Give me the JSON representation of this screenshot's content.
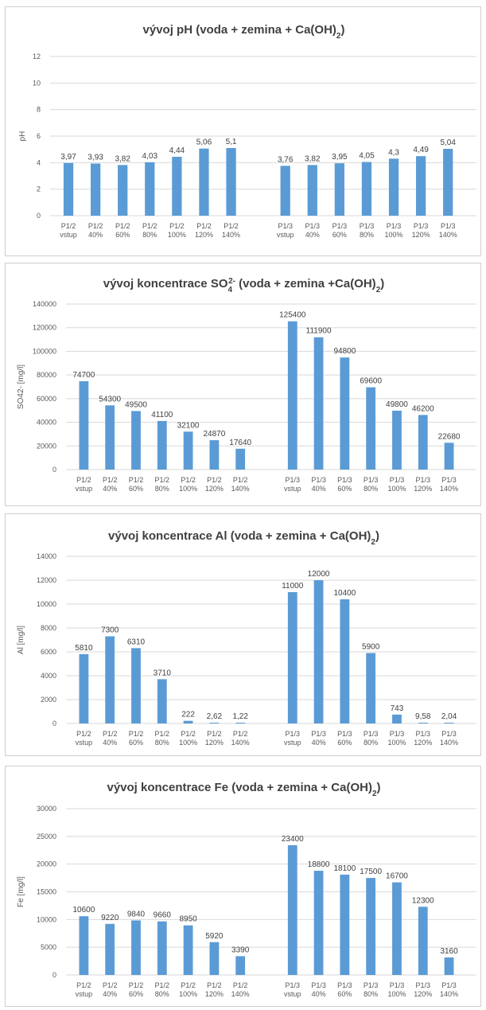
{
  "chart_data": [
    {
      "type": "bar",
      "title_main": "vývoj pH (voda + zemina + Ca(OH)",
      "title_sub": "2",
      "title_end": ")",
      "ylabel": "pH",
      "ylabel_sup": "",
      "ylabel_rest": "",
      "ylim": [
        0,
        12
      ],
      "yticks": [
        "0",
        "2",
        "4",
        "6",
        "8",
        "10",
        "12"
      ],
      "color": "#5b9bd5",
      "groups": [
        {
          "categories": [
            [
              "P1/2",
              "vstup"
            ],
            [
              "P1/2",
              "40%"
            ],
            [
              "P1/2",
              "60%"
            ],
            [
              "P1/2",
              "80%"
            ],
            [
              "P1/2",
              "100%"
            ],
            [
              "P1/2",
              "120%"
            ],
            [
              "P1/2",
              "140%"
            ]
          ],
          "values": [
            3.97,
            3.93,
            3.82,
            4.03,
            4.44,
            5.06,
            5.1
          ],
          "labels": [
            "3,97",
            "3,93",
            "3,82",
            "4,03",
            "4,44",
            "5,06",
            "5,1"
          ]
        },
        {
          "categories": [
            [
              "P1/3",
              "vstup"
            ],
            [
              "P1/3",
              "40%"
            ],
            [
              "P1/3",
              "60%"
            ],
            [
              "P1/3",
              "80%"
            ],
            [
              "P1/3",
              "100%"
            ],
            [
              "P1/3",
              "120%"
            ],
            [
              "P1/3",
              "140%"
            ]
          ],
          "values": [
            3.76,
            3.82,
            3.95,
            4.05,
            4.3,
            4.49,
            5.04
          ],
          "labels": [
            "3,76",
            "3,82",
            "3,95",
            "4,05",
            "4,3",
            "4,49",
            "5,04"
          ]
        }
      ]
    },
    {
      "type": "bar",
      "title_main": "vývoj koncentrace SO",
      "title_sub": "4",
      "title_sup": "2-",
      "title_end": " (voda + zemina +Ca(OH)",
      "title_sub2": "2",
      "title_end2": ")",
      "ylabel": "SO42- [mg/l]",
      "ylim": [
        0,
        140000
      ],
      "yticks": [
        "0",
        "20000",
        "40000",
        "60000",
        "80000",
        "100000",
        "120000",
        "140000"
      ],
      "color": "#5b9bd5",
      "groups": [
        {
          "categories": [
            [
              "P1/2",
              "vstup"
            ],
            [
              "P1/2",
              "40%"
            ],
            [
              "P1/2",
              "60%"
            ],
            [
              "P1/2",
              "80%"
            ],
            [
              "P1/2",
              "100%"
            ],
            [
              "P1/2",
              "120%"
            ],
            [
              "P1/2",
              "140%"
            ]
          ],
          "values": [
            74700,
            54300,
            49500,
            41100,
            32100,
            24870,
            17640
          ],
          "labels": [
            "74700",
            "54300",
            "49500",
            "41100",
            "32100",
            "24870",
            "17640"
          ]
        },
        {
          "categories": [
            [
              "P1/3",
              "vstup"
            ],
            [
              "P1/3",
              "40%"
            ],
            [
              "P1/3",
              "60%"
            ],
            [
              "P1/3",
              "80%"
            ],
            [
              "P1/3",
              "100%"
            ],
            [
              "P1/3",
              "120%"
            ],
            [
              "P1/3",
              "140%"
            ]
          ],
          "values": [
            125400,
            111900,
            94800,
            69600,
            49800,
            46200,
            22680
          ],
          "labels": [
            "125400",
            "111900",
            "94800",
            "69600",
            "49800",
            "46200",
            "22680"
          ]
        }
      ]
    },
    {
      "type": "bar",
      "title_main": "vývoj koncentrace Al (voda + zemina + Ca(OH)",
      "title_sub": "2",
      "title_end": ")",
      "ylabel": "Al [mg/l]",
      "ylim": [
        0,
        14000
      ],
      "yticks": [
        "0",
        "2000",
        "4000",
        "6000",
        "8000",
        "10000",
        "12000",
        "14000"
      ],
      "color": "#5b9bd5",
      "groups": [
        {
          "categories": [
            [
              "P1/2",
              "vstup"
            ],
            [
              "P1/2",
              "40%"
            ],
            [
              "P1/2",
              "60%"
            ],
            [
              "P1/2",
              "80%"
            ],
            [
              "P1/2",
              "100%"
            ],
            [
              "P1/2",
              "120%"
            ],
            [
              "P1/2",
              "140%"
            ]
          ],
          "values": [
            5810,
            7300,
            6310,
            3710,
            222,
            2.62,
            1.22
          ],
          "labels": [
            "5810",
            "7300",
            "6310",
            "3710",
            "222",
            "2,62",
            "1,22"
          ]
        },
        {
          "categories": [
            [
              "P1/3",
              "vstup"
            ],
            [
              "P1/3",
              "40%"
            ],
            [
              "P1/3",
              "60%"
            ],
            [
              "P1/3",
              "80%"
            ],
            [
              "P1/3",
              "100%"
            ],
            [
              "P1/3",
              "120%"
            ],
            [
              "P1/3",
              "140%"
            ]
          ],
          "values": [
            11000,
            12000,
            10400,
            5900,
            743,
            9.58,
            2.04
          ],
          "labels": [
            "11000",
            "12000",
            "10400",
            "5900",
            "743",
            "9,58",
            "2,04"
          ]
        }
      ]
    },
    {
      "type": "bar",
      "title_main": "vývoj koncentrace Fe (voda + zemina + Ca(OH)",
      "title_sub": "2",
      "title_end": ")",
      "ylabel": "Fe [mg/l]",
      "ylim": [
        0,
        30000
      ],
      "yticks": [
        "0",
        "5000",
        "10000",
        "15000",
        "20000",
        "25000",
        "30000"
      ],
      "color": "#5b9bd5",
      "groups": [
        {
          "categories": [
            [
              "P1/2",
              "vstup"
            ],
            [
              "P1/2",
              "40%"
            ],
            [
              "P1/2",
              "60%"
            ],
            [
              "P1/2",
              "80%"
            ],
            [
              "P1/2",
              "100%"
            ],
            [
              "P1/2",
              "120%"
            ],
            [
              "P1/2",
              "140%"
            ]
          ],
          "values": [
            10600,
            9220,
            9840,
            9660,
            8950,
            5920,
            3390
          ],
          "labels": [
            "10600",
            "9220",
            "9840",
            "9660",
            "8950",
            "5920",
            "3390"
          ]
        },
        {
          "categories": [
            [
              "P1/3",
              "vstup"
            ],
            [
              "P1/3",
              "40%"
            ],
            [
              "P1/3",
              "60%"
            ],
            [
              "P1/3",
              "80%"
            ],
            [
              "P1/3",
              "100%"
            ],
            [
              "P1/3",
              "120%"
            ],
            [
              "P1/3",
              "140%"
            ]
          ],
          "values": [
            23400,
            18800,
            18100,
            17500,
            16700,
            12300,
            3160
          ],
          "labels": [
            "23400",
            "18800",
            "18100",
            "17500",
            "16700",
            "12300",
            "3160"
          ]
        }
      ]
    }
  ]
}
